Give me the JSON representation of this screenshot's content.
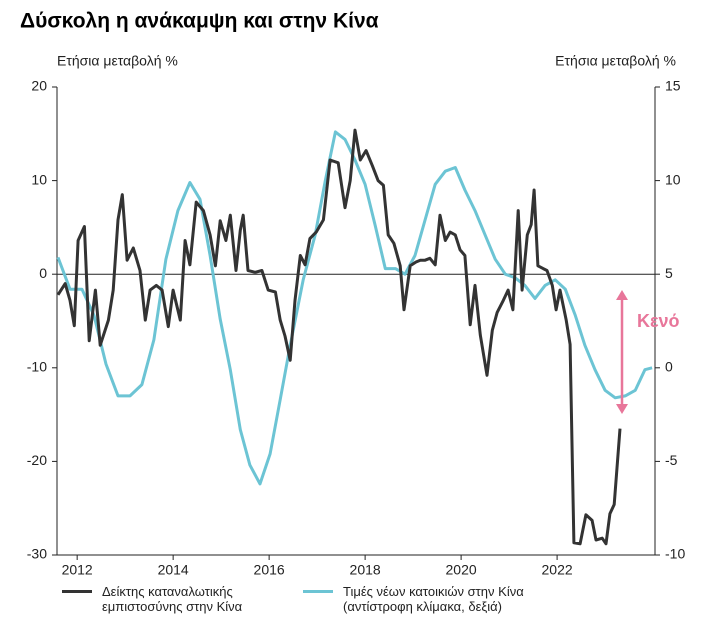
{
  "chart_data": {
    "type": "line",
    "title": "Δύσκολη η ανάκαμψη και στην Κίνα",
    "y_label": "Ετήσια μεταβολή %",
    "y2_label": "Ετήσια μεταβολή %",
    "annotation": "Κενό",
    "annotation_color": "#e8769a",
    "xlim": [
      2011.58,
      2024.04
    ],
    "xticks": [
      2012,
      2014,
      2016,
      2018,
      2020,
      2022
    ],
    "ylim": [
      -30,
      20
    ],
    "yticks": [
      -30,
      -20,
      -10,
      0,
      10,
      20
    ],
    "y2lim": [
      -10,
      15
    ],
    "y2ticks": [
      -10,
      -5,
      0,
      5,
      10,
      15
    ],
    "zero_line": true,
    "series": [
      {
        "name": "Δείκτης καταναλωτικής εμπιστοσύνης στην Κίνα",
        "color": "#333333",
        "x": [
          2011.6,
          2011.75,
          2011.85,
          2011.94,
          2012.02,
          2012.15,
          2012.25,
          2012.38,
          2012.48,
          2012.65,
          2012.75,
          2012.85,
          2012.94,
          2013.04,
          2013.17,
          2013.31,
          2013.42,
          2013.52,
          2013.65,
          2013.77,
          2013.9,
          2014.0,
          2014.15,
          2014.25,
          2014.35,
          2014.48,
          2014.63,
          2014.77,
          2014.88,
          2014.98,
          2015.1,
          2015.19,
          2015.31,
          2015.4,
          2015.46,
          2015.56,
          2015.71,
          2015.85,
          2015.98,
          2016.13,
          2016.23,
          2016.33,
          2016.44,
          2016.54,
          2016.65,
          2016.75,
          2016.85,
          2016.98,
          2017.13,
          2017.27,
          2017.44,
          2017.58,
          2017.69,
          2017.79,
          2017.9,
          2018.02,
          2018.15,
          2018.27,
          2018.38,
          2018.48,
          2018.6,
          2018.73,
          2018.81,
          2018.94,
          2019.06,
          2019.15,
          2019.25,
          2019.35,
          2019.46,
          2019.56,
          2019.67,
          2019.77,
          2019.88,
          2019.98,
          2020.08,
          2020.19,
          2020.29,
          2020.4,
          2020.54,
          2020.65,
          2020.75,
          2020.88,
          2020.98,
          2021.08,
          2021.19,
          2021.27,
          2021.38,
          2021.46,
          2021.52,
          2021.6,
          2021.71,
          2021.79,
          2021.9,
          2021.98,
          2022.06,
          2022.19,
          2022.27,
          2022.35,
          2022.48,
          2022.6,
          2022.73,
          2022.81,
          2022.94,
          2023.02,
          2023.1,
          2023.19,
          2023.31
        ],
        "values": [
          -2.2,
          -1.0,
          -2.8,
          -5.5,
          3.6,
          5.1,
          -7.1,
          -1.7,
          -7.6,
          -4.9,
          -1.7,
          5.8,
          8.5,
          1.5,
          2.8,
          0.4,
          -4.9,
          -1.7,
          -1.2,
          -1.7,
          -5.6,
          -1.7,
          -4.9,
          3.6,
          1.0,
          7.7,
          6.8,
          4.2,
          0.9,
          5.7,
          3.6,
          6.3,
          0.4,
          4.7,
          6.3,
          0.4,
          0.2,
          0.4,
          -1.7,
          -1.9,
          -4.9,
          -6.6,
          -9.2,
          -2.8,
          2.0,
          1.0,
          3.8,
          4.5,
          5.8,
          12.2,
          11.9,
          7.1,
          10.0,
          15.4,
          12.2,
          13.2,
          11.6,
          10.0,
          9.5,
          4.2,
          3.3,
          0.9,
          -3.8,
          0.9,
          1.3,
          1.5,
          1.5,
          1.7,
          1.0,
          6.3,
          3.6,
          4.5,
          4.2,
          2.6,
          2.0,
          -5.4,
          -1.2,
          -6.5,
          -10.8,
          -6.0,
          -4.1,
          -2.8,
          -1.7,
          -3.8,
          6.8,
          -1.7,
          4.2,
          5.3,
          9.0,
          0.9,
          0.6,
          0.4,
          -1.2,
          -3.8,
          -1.7,
          -4.9,
          -7.5,
          -28.7,
          -28.8,
          -25.7,
          -26.3,
          -28.4,
          -28.2,
          -28.8,
          -25.6,
          -24.6,
          -16.5
        ]
      },
      {
        "name": "Τιμές νέων κατοικιών στην Κίνα (αντίστροφη κλίμακα, δεξιά)",
        "color": "#6cc4d4",
        "axis": "y2",
        "x": [
          2011.6,
          2011.85,
          2012.1,
          2012.35,
          2012.6,
          2012.85,
          2013.1,
          2013.35,
          2013.6,
          2013.85,
          2014.1,
          2014.35,
          2014.56,
          2014.77,
          2014.98,
          2015.19,
          2015.4,
          2015.6,
          2015.81,
          2016.02,
          2016.23,
          2016.44,
          2016.71,
          2016.96,
          2017.17,
          2017.38,
          2017.58,
          2017.79,
          2018.0,
          2018.21,
          2018.42,
          2018.63,
          2018.83,
          2019.04,
          2019.25,
          2019.46,
          2019.67,
          2019.88,
          2020.08,
          2020.29,
          2020.5,
          2020.71,
          2020.92,
          2021.13,
          2021.33,
          2021.54,
          2021.75,
          2021.96,
          2022.17,
          2022.38,
          2022.58,
          2022.79,
          2023.0,
          2023.21,
          2023.42,
          2023.63,
          2023.83,
          2023.98
        ],
        "values": [
          5.9,
          4.2,
          4.2,
          2.8,
          0.2,
          -1.5,
          -1.5,
          -0.9,
          1.5,
          5.8,
          8.4,
          9.9,
          9.0,
          6.0,
          2.6,
          -0.1,
          -3.3,
          -5.2,
          -6.2,
          -4.6,
          -1.7,
          1.2,
          4.7,
          7.1,
          10.0,
          12.6,
          12.2,
          11.1,
          9.8,
          7.6,
          5.3,
          5.3,
          5.0,
          6.0,
          7.9,
          9.8,
          10.5,
          10.7,
          9.5,
          8.4,
          7.1,
          5.8,
          5.0,
          4.8,
          4.4,
          3.7,
          4.4,
          4.7,
          4.2,
          2.8,
          1.2,
          -0.1,
          -1.2,
          -1.6,
          -1.5,
          -1.2,
          -0.1,
          0.0
        ]
      }
    ]
  }
}
